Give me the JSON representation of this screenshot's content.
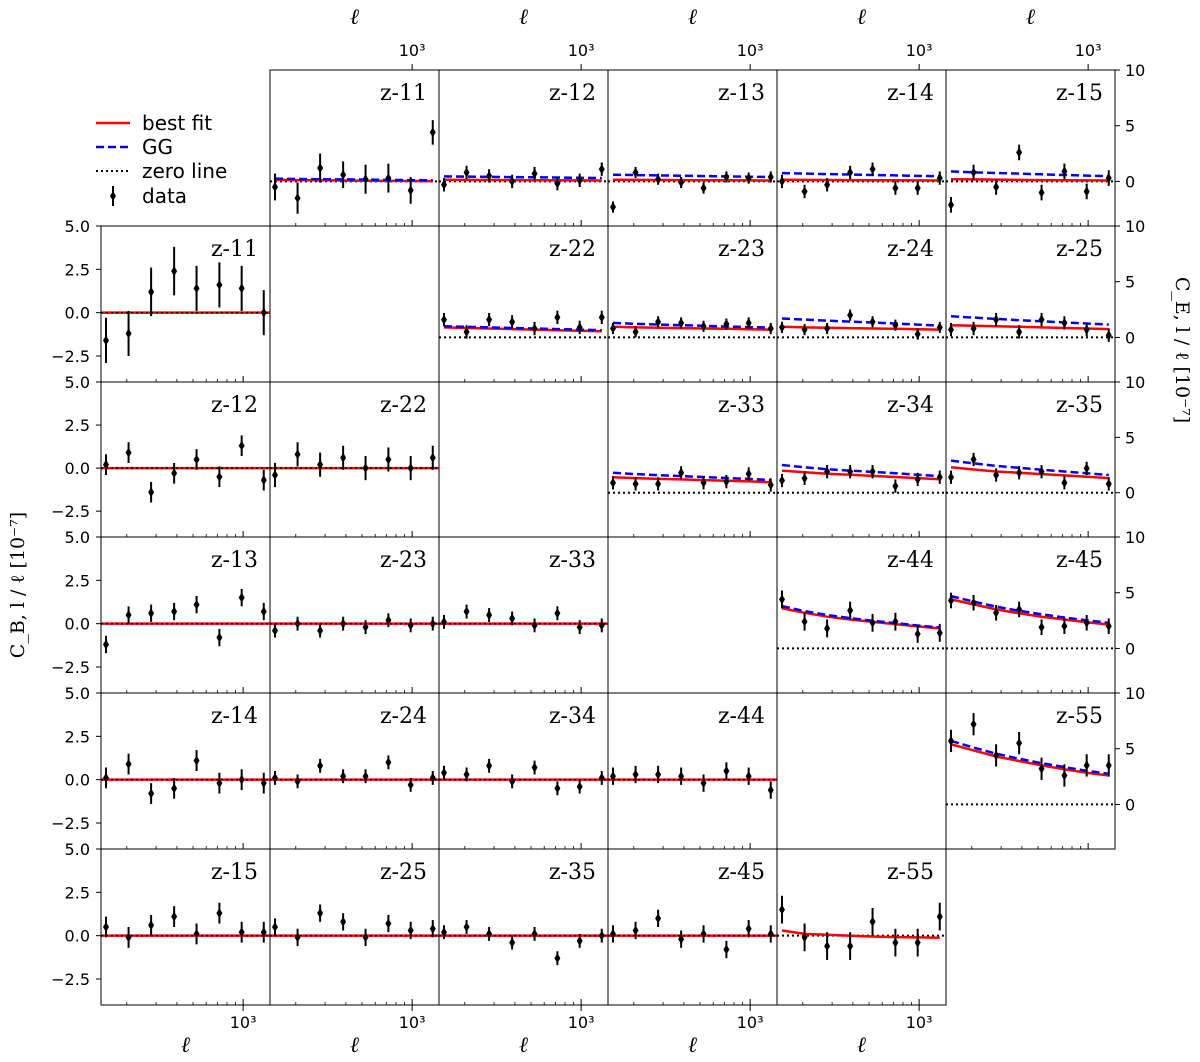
{
  "chart_data": {
    "type": "scatter",
    "description": "Triangle grid of angular power spectra per redshift bin pair with error bars, best-fit and GG models",
    "legend": {
      "placement": "top-left",
      "entries": [
        {
          "label": "best fit",
          "style": "red-solid"
        },
        {
          "label": "GG",
          "style": "blue-dashed"
        },
        {
          "label": "zero line",
          "style": "black-dotted"
        },
        {
          "label": "data",
          "style": "black-errorbar"
        }
      ]
    },
    "colors": {
      "best_fit": "#ff0000",
      "gg": "#0000ff",
      "zero": "#000000",
      "data": "#000000"
    },
    "x": {
      "label": "ℓ",
      "ticks": [
        {
          "value": 1000,
          "label": "10³"
        }
      ],
      "range": [
        140,
        1450
      ],
      "scale": "log",
      "points": [
        150,
        205,
        280,
        385,
        525,
        720,
        980,
        1330
      ]
    },
    "ylabel_B": "C_B, l / ℓ [10⁻⁷]",
    "ylabel_E": "C_E, l / ℓ [10⁻⁷]",
    "ylim_B": [
      -4,
      5
    ],
    "ylim_E": [
      -4,
      10
    ],
    "yticks_B": [
      {
        "v": 5,
        "l": "5.0"
      },
      {
        "v": 2.5,
        "l": "2.5"
      },
      {
        "v": 0,
        "l": "0.0"
      },
      {
        "v": -2.5,
        "l": "−2.5"
      }
    ],
    "yticks_E": [
      {
        "v": 10,
        "l": "10"
      },
      {
        "v": 5,
        "l": "5"
      },
      {
        "v": 0,
        "l": "0"
      }
    ],
    "E_panels": [
      {
        "label": "z-11",
        "row": 0,
        "col": 1,
        "y": [
          -0.5,
          -1.5,
          1.2,
          0.6,
          0.2,
          0.3,
          -0.8,
          4.4
        ],
        "err": [
          1.2,
          1.4,
          1.3,
          1.2,
          1.3,
          1.3,
          1.2,
          1.1
        ],
        "fit": [
          0.15,
          0.12,
          0.1,
          0.08,
          0.06,
          0.05,
          0.04,
          0.03
        ],
        "gg": [
          0.25,
          0.22,
          0.2,
          0.18,
          0.16,
          0.14,
          0.12,
          0.1
        ]
      },
      {
        "label": "z-12",
        "row": 0,
        "col": 2,
        "y": [
          -0.3,
          0.8,
          0.5,
          0.0,
          0.7,
          -0.2,
          0.1,
          1.1
        ],
        "err": [
          0.6,
          0.6,
          0.6,
          0.6,
          0.6,
          0.6,
          0.6,
          0.6
        ],
        "fit": [
          0.15,
          0.14,
          0.13,
          0.12,
          0.11,
          0.1,
          0.09,
          0.08
        ],
        "gg": [
          0.45,
          0.43,
          0.41,
          0.39,
          0.37,
          0.35,
          0.33,
          0.31
        ]
      },
      {
        "label": "z-13",
        "row": 0,
        "col": 3,
        "y": [
          -2.3,
          0.8,
          0.2,
          -0.1,
          -0.6,
          0.4,
          0.3,
          0.4
        ],
        "err": [
          0.5,
          0.5,
          0.5,
          0.5,
          0.5,
          0.5,
          0.5,
          0.5
        ],
        "fit": [
          0.15,
          0.14,
          0.13,
          0.12,
          0.11,
          0.1,
          0.09,
          0.08
        ],
        "gg": [
          0.6,
          0.57,
          0.54,
          0.51,
          0.48,
          0.45,
          0.42,
          0.4
        ]
      },
      {
        "label": "z-14",
        "row": 0,
        "col": 4,
        "y": [
          0.0,
          -0.9,
          -0.3,
          0.8,
          1.1,
          -0.6,
          -0.6,
          0.3
        ],
        "err": [
          0.6,
          0.6,
          0.6,
          0.6,
          0.6,
          0.6,
          0.6,
          0.6
        ],
        "fit": [
          0.15,
          0.14,
          0.13,
          0.12,
          0.11,
          0.1,
          0.09,
          0.08
        ],
        "gg": [
          0.75,
          0.7,
          0.66,
          0.62,
          0.58,
          0.54,
          0.5,
          0.47
        ]
      },
      {
        "label": "z-15",
        "row": 0,
        "col": 5,
        "y": [
          -2.1,
          0.8,
          -0.5,
          2.6,
          -1.0,
          0.9,
          -0.9,
          0.3
        ],
        "err": [
          0.7,
          0.7,
          0.7,
          0.7,
          0.7,
          0.7,
          0.7,
          0.7
        ],
        "fit": [
          0.2,
          0.18,
          0.16,
          0.14,
          0.12,
          0.1,
          0.09,
          0.08
        ],
        "gg": [
          0.9,
          0.82,
          0.76,
          0.7,
          0.64,
          0.58,
          0.52,
          0.47
        ]
      },
      {
        "label": "z-22",
        "row": 1,
        "col": 2,
        "y": [
          1.6,
          0.5,
          1.6,
          1.4,
          0.8,
          1.8,
          0.9,
          1.8
        ],
        "err": [
          0.6,
          0.6,
          0.6,
          0.6,
          0.6,
          0.6,
          0.6,
          0.6
        ],
        "fit": [
          0.9,
          0.85,
          0.8,
          0.75,
          0.7,
          0.65,
          0.6,
          0.56
        ],
        "gg": [
          1.0,
          0.95,
          0.9,
          0.85,
          0.8,
          0.75,
          0.7,
          0.65
        ]
      },
      {
        "label": "z-23",
        "row": 1,
        "col": 3,
        "y": [
          0.8,
          0.5,
          1.4,
          1.3,
          1.0,
          1.2,
          1.3,
          0.8
        ],
        "err": [
          0.5,
          0.5,
          0.5,
          0.5,
          0.5,
          0.5,
          0.5,
          0.5
        ],
        "fit": [
          0.95,
          0.9,
          0.87,
          0.84,
          0.8,
          0.77,
          0.74,
          0.7
        ],
        "gg": [
          1.3,
          1.22,
          1.15,
          1.1,
          1.04,
          0.98,
          0.93,
          0.88
        ]
      },
      {
        "label": "z-24",
        "row": 1,
        "col": 4,
        "y": [
          0.9,
          0.7,
          0.8,
          2.0,
          1.4,
          1.1,
          0.3,
          0.9
        ],
        "err": [
          0.5,
          0.5,
          0.5,
          0.5,
          0.5,
          0.5,
          0.5,
          0.5
        ],
        "fit": [
          0.95,
          0.9,
          0.87,
          0.84,
          0.8,
          0.77,
          0.74,
          0.7
        ],
        "gg": [
          1.7,
          1.6,
          1.5,
          1.42,
          1.34,
          1.25,
          1.15,
          1.05
        ]
      },
      {
        "label": "z-25",
        "row": 1,
        "col": 5,
        "y": [
          0.7,
          0.8,
          1.6,
          0.5,
          1.6,
          1.3,
          0.7,
          0.2
        ],
        "err": [
          0.6,
          0.6,
          0.6,
          0.6,
          0.6,
          0.6,
          0.6,
          0.6
        ],
        "fit": [
          1.1,
          1.05,
          1.0,
          0.95,
          0.9,
          0.85,
          0.8,
          0.75
        ],
        "gg": [
          1.9,
          1.78,
          1.66,
          1.55,
          1.45,
          1.35,
          1.25,
          1.15
        ]
      },
      {
        "label": "z-33",
        "row": 2,
        "col": 3,
        "y": [
          0.9,
          0.8,
          0.8,
          1.8,
          0.9,
          1.0,
          1.7,
          0.7
        ],
        "err": [
          0.6,
          0.6,
          0.6,
          0.6,
          0.6,
          0.6,
          0.6,
          0.6
        ],
        "fit": [
          1.4,
          1.32,
          1.25,
          1.2,
          1.14,
          1.08,
          1.02,
          0.95
        ],
        "gg": [
          1.8,
          1.68,
          1.58,
          1.5,
          1.42,
          1.33,
          1.25,
          1.15
        ]
      },
      {
        "label": "z-34",
        "row": 2,
        "col": 4,
        "y": [
          1.1,
          1.3,
          1.9,
          1.9,
          1.9,
          0.6,
          1.2,
          1.4
        ],
        "err": [
          0.6,
          0.6,
          0.6,
          0.6,
          0.6,
          0.6,
          0.6,
          0.6
        ],
        "fit": [
          2.0,
          1.85,
          1.72,
          1.62,
          1.52,
          1.42,
          1.32,
          1.22
        ],
        "gg": [
          2.5,
          2.3,
          2.12,
          2.0,
          1.88,
          1.76,
          1.62,
          1.5
        ]
      },
      {
        "label": "z-35",
        "row": 2,
        "col": 5,
        "y": [
          1.4,
          3.0,
          1.6,
          1.8,
          1.9,
          0.9,
          2.2,
          0.8
        ],
        "err": [
          0.6,
          0.6,
          0.6,
          0.6,
          0.6,
          0.6,
          0.6,
          0.6
        ],
        "fit": [
          2.3,
          2.1,
          1.92,
          1.8,
          1.68,
          1.56,
          1.44,
          1.32
        ],
        "gg": [
          2.9,
          2.65,
          2.42,
          2.25,
          2.08,
          1.92,
          1.76,
          1.6
        ]
      },
      {
        "label": "z-44",
        "row": 3,
        "col": 4,
        "y": [
          4.4,
          2.4,
          1.8,
          3.4,
          2.3,
          2.4,
          1.3,
          1.4
        ],
        "err": [
          0.8,
          0.8,
          0.8,
          0.8,
          0.8,
          0.8,
          0.8,
          0.8
        ],
        "fit": [
          3.6,
          3.2,
          2.85,
          2.6,
          2.38,
          2.18,
          1.98,
          1.8
        ],
        "gg": [
          3.8,
          3.35,
          3.0,
          2.72,
          2.48,
          2.27,
          2.06,
          1.88
        ]
      },
      {
        "label": "z-45",
        "row": 3,
        "col": 5,
        "y": [
          4.3,
          4.1,
          3.2,
          3.5,
          1.9,
          2.0,
          2.3,
          2.0
        ],
        "err": [
          0.7,
          0.7,
          0.7,
          0.7,
          0.7,
          0.7,
          0.7,
          0.7
        ],
        "fit": [
          4.4,
          3.95,
          3.5,
          3.15,
          2.85,
          2.6,
          2.35,
          2.15
        ],
        "gg": [
          4.7,
          4.2,
          3.75,
          3.38,
          3.06,
          2.78,
          2.52,
          2.3
        ]
      },
      {
        "label": "z-55",
        "row": 4,
        "col": 5,
        "y": [
          5.7,
          7.2,
          4.4,
          5.5,
          3.2,
          2.6,
          3.5,
          3.5
        ],
        "err": [
          1.0,
          1.0,
          1.0,
          1.0,
          1.0,
          1.0,
          1.0,
          1.0
        ],
        "fit": [
          5.4,
          4.85,
          4.3,
          3.9,
          3.5,
          3.15,
          2.85,
          2.6
        ],
        "gg": [
          5.7,
          5.1,
          4.55,
          4.1,
          3.7,
          3.35,
          3.02,
          2.75
        ]
      }
    ],
    "B_panels": [
      {
        "label": "z-11",
        "row": 1,
        "col": 0,
        "y": [
          -1.6,
          -1.2,
          1.2,
          2.4,
          1.4,
          1.6,
          1.4,
          0.0
        ],
        "err": [
          1.3,
          1.3,
          1.4,
          1.4,
          1.3,
          1.3,
          1.3,
          1.3
        ]
      },
      {
        "label": "z-12",
        "row": 2,
        "col": 0,
        "y": [
          0.2,
          0.9,
          -1.4,
          -0.3,
          0.5,
          -0.5,
          1.3,
          -0.7
        ],
        "err": [
          0.6,
          0.6,
          0.6,
          0.6,
          0.6,
          0.6,
          0.6,
          0.6
        ]
      },
      {
        "label": "z-22",
        "row": 2,
        "col": 1,
        "y": [
          -0.4,
          0.8,
          0.2,
          0.6,
          0.0,
          0.5,
          0.0,
          0.6
        ],
        "err": [
          0.7,
          0.7,
          0.7,
          0.7,
          0.7,
          0.7,
          0.7,
          0.7
        ]
      },
      {
        "label": "z-13",
        "row": 3,
        "col": 0,
        "y": [
          -1.2,
          0.5,
          0.6,
          0.7,
          1.1,
          -0.8,
          1.5,
          0.7
        ],
        "err": [
          0.5,
          0.5,
          0.5,
          0.5,
          0.5,
          0.5,
          0.5,
          0.5
        ]
      },
      {
        "label": "z-23",
        "row": 3,
        "col": 1,
        "y": [
          -0.4,
          0.0,
          -0.4,
          0.0,
          -0.2,
          0.2,
          -0.1,
          0.0
        ],
        "err": [
          0.4,
          0.4,
          0.4,
          0.4,
          0.4,
          0.4,
          0.4,
          0.4
        ]
      },
      {
        "label": "z-33",
        "row": 3,
        "col": 2,
        "y": [
          0.1,
          0.7,
          0.5,
          0.3,
          -0.1,
          0.6,
          -0.2,
          -0.1
        ],
        "err": [
          0.4,
          0.4,
          0.4,
          0.4,
          0.4,
          0.4,
          0.4,
          0.4
        ]
      },
      {
        "label": "z-14",
        "row": 4,
        "col": 0,
        "y": [
          0.1,
          0.9,
          -0.8,
          -0.5,
          1.1,
          -0.2,
          0.0,
          -0.2
        ],
        "err": [
          0.6,
          0.6,
          0.6,
          0.6,
          0.6,
          0.6,
          0.6,
          0.6
        ]
      },
      {
        "label": "z-24",
        "row": 4,
        "col": 1,
        "y": [
          0.1,
          -0.1,
          0.8,
          0.2,
          0.2,
          1.0,
          -0.3,
          0.1
        ],
        "err": [
          0.4,
          0.4,
          0.4,
          0.4,
          0.4,
          0.4,
          0.4,
          0.4
        ]
      },
      {
        "label": "z-34",
        "row": 4,
        "col": 2,
        "y": [
          0.4,
          0.3,
          0.8,
          -0.1,
          0.7,
          -0.5,
          -0.4,
          0.1
        ],
        "err": [
          0.4,
          0.4,
          0.4,
          0.4,
          0.4,
          0.4,
          0.4,
          0.4
        ]
      },
      {
        "label": "z-44",
        "row": 4,
        "col": 3,
        "y": [
          0.2,
          0.3,
          0.3,
          0.2,
          -0.2,
          0.5,
          0.2,
          -0.6
        ],
        "err": [
          0.5,
          0.5,
          0.5,
          0.5,
          0.5,
          0.5,
          0.5,
          0.5
        ]
      },
      {
        "label": "z-15",
        "row": 5,
        "col": 0,
        "y": [
          0.5,
          -0.1,
          0.6,
          1.1,
          0.1,
          1.3,
          0.2,
          0.2
        ],
        "err": [
          0.6,
          0.6,
          0.6,
          0.6,
          0.6,
          0.6,
          0.6,
          0.6
        ]
      },
      {
        "label": "z-25",
        "row": 5,
        "col": 1,
        "y": [
          0.5,
          -0.1,
          1.3,
          0.8,
          -0.1,
          0.7,
          0.3,
          0.4
        ],
        "err": [
          0.5,
          0.5,
          0.5,
          0.5,
          0.5,
          0.5,
          0.5,
          0.5
        ]
      },
      {
        "label": "z-35",
        "row": 5,
        "col": 2,
        "y": [
          0.2,
          0.5,
          0.1,
          -0.4,
          0.1,
          -1.3,
          -0.3,
          0.0
        ],
        "err": [
          0.4,
          0.4,
          0.4,
          0.4,
          0.4,
          0.4,
          0.4,
          0.4
        ]
      },
      {
        "label": "z-45",
        "row": 5,
        "col": 3,
        "y": [
          0.1,
          0.3,
          1.0,
          -0.2,
          0.1,
          -0.8,
          0.4,
          0.1
        ],
        "err": [
          0.5,
          0.5,
          0.5,
          0.5,
          0.5,
          0.5,
          0.5,
          0.5
        ]
      },
      {
        "label": "z-55",
        "row": 5,
        "col": 4,
        "y": [
          1.5,
          -0.1,
          -0.6,
          -0.6,
          0.8,
          -0.4,
          -0.4,
          1.1
        ],
        "err": [
          0.8,
          0.8,
          0.8,
          0.8,
          0.8,
          0.8,
          0.8,
          0.8
        ],
        "fit": [
          0.3,
          0.1,
          0.05,
          0.0,
          -0.05,
          -0.08,
          -0.1,
          -0.12
        ]
      }
    ]
  }
}
